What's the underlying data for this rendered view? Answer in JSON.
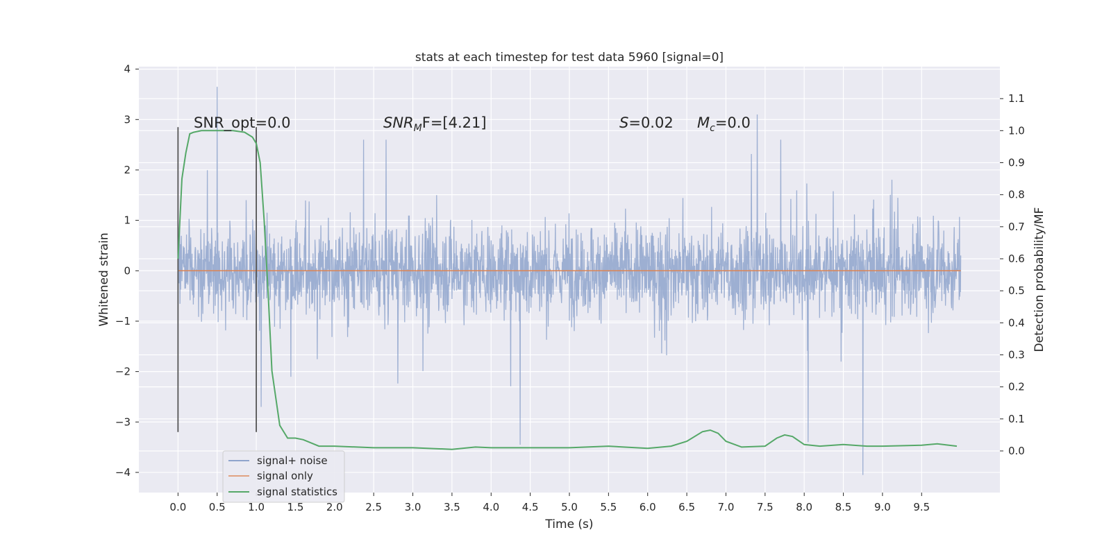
{
  "chart_data": {
    "type": "line",
    "title": "stats at each timestep for test data 5960 [signal=0]",
    "xlabel": "Time (s)",
    "ylabel": "Whitened strain",
    "y2label": "Detection probability/MF",
    "xlim": [
      -0.5,
      10.5
    ],
    "ylim": [
      -4.4,
      4.05
    ],
    "y2lim": [
      -0.13,
      1.2
    ],
    "x_ticks": [
      "0.0",
      "0.5",
      "1.0",
      "1.5",
      "2.0",
      "2.5",
      "3.0",
      "3.5",
      "4.0",
      "4.5",
      "5.0",
      "5.5",
      "6.0",
      "6.5",
      "7.0",
      "7.5",
      "8.0",
      "8.5",
      "9.0",
      "9.5"
    ],
    "y_ticks": [
      "4",
      "3",
      "2",
      "1",
      "0",
      "−1",
      "−2",
      "−3",
      "−4"
    ],
    "y2_ticks": [
      "1.1",
      "1.0",
      "0.9",
      "0.8",
      "0.7",
      "0.6",
      "0.5",
      "0.4",
      "0.3",
      "0.2",
      "0.1",
      "0.0"
    ],
    "grid": true,
    "legend_position": "lower-left",
    "annotations": {
      "snr_opt": "SNR_opt=0.0",
      "snr_mf_main": "SNR",
      "snr_mf_sub": "M",
      "snr_mf_rest": "F=[4.21]",
      "s_main": "S",
      "s_rest": "=0.02",
      "mc_main": "M",
      "mc_sub": "c",
      "mc_rest": "=0.0"
    },
    "vertical_markers": [
      0.0,
      1.0
    ],
    "series": [
      {
        "name": "signal+ noise",
        "color": "#8fa4cc",
        "x_range": [
          0.0,
          10.0
        ],
        "typical_envelope": [
          -1.4,
          1.6
        ],
        "peak_extremes": [
          {
            "x": 0.5,
            "y": 3.65
          },
          {
            "x": 7.4,
            "y": 3.1
          },
          {
            "x": 4.37,
            "y": -3.45
          },
          {
            "x": 8.05,
            "y": -3.4
          },
          {
            "x": 8.75,
            "y": -4.05
          }
        ]
      },
      {
        "name": "signal only",
        "color": "#dd8452",
        "x": [
          0.0,
          10.0
        ],
        "y": [
          0.0,
          0.0
        ]
      },
      {
        "name": "signal statistics",
        "color": "#55a868",
        "axis": "right",
        "x": [
          0.0,
          0.05,
          0.1,
          0.15,
          0.2,
          0.3,
          0.5,
          0.7,
          0.85,
          0.95,
          1.0,
          1.05,
          1.1,
          1.15,
          1.2,
          1.3,
          1.4,
          1.5,
          1.6,
          1.7,
          1.8,
          2.0,
          2.5,
          3.0,
          3.5,
          3.8,
          4.0,
          4.5,
          5.0,
          5.5,
          6.0,
          6.3,
          6.5,
          6.7,
          6.8,
          6.9,
          7.0,
          7.2,
          7.5,
          7.65,
          7.75,
          7.85,
          8.0,
          8.2,
          8.5,
          8.8,
          9.0,
          9.5,
          9.7,
          9.95
        ],
        "y": [
          0.6,
          0.85,
          0.93,
          0.99,
          0.995,
          1.0,
          1.0,
          1.0,
          0.995,
          0.98,
          0.96,
          0.9,
          0.72,
          0.5,
          0.25,
          0.08,
          0.04,
          0.04,
          0.035,
          0.025,
          0.015,
          0.015,
          0.01,
          0.01,
          0.005,
          0.012,
          0.01,
          0.01,
          0.01,
          0.015,
          0.008,
          0.015,
          0.03,
          0.06,
          0.065,
          0.055,
          0.03,
          0.012,
          0.015,
          0.04,
          0.05,
          0.045,
          0.02,
          0.015,
          0.02,
          0.015,
          0.015,
          0.018,
          0.022,
          0.015
        ]
      }
    ]
  }
}
